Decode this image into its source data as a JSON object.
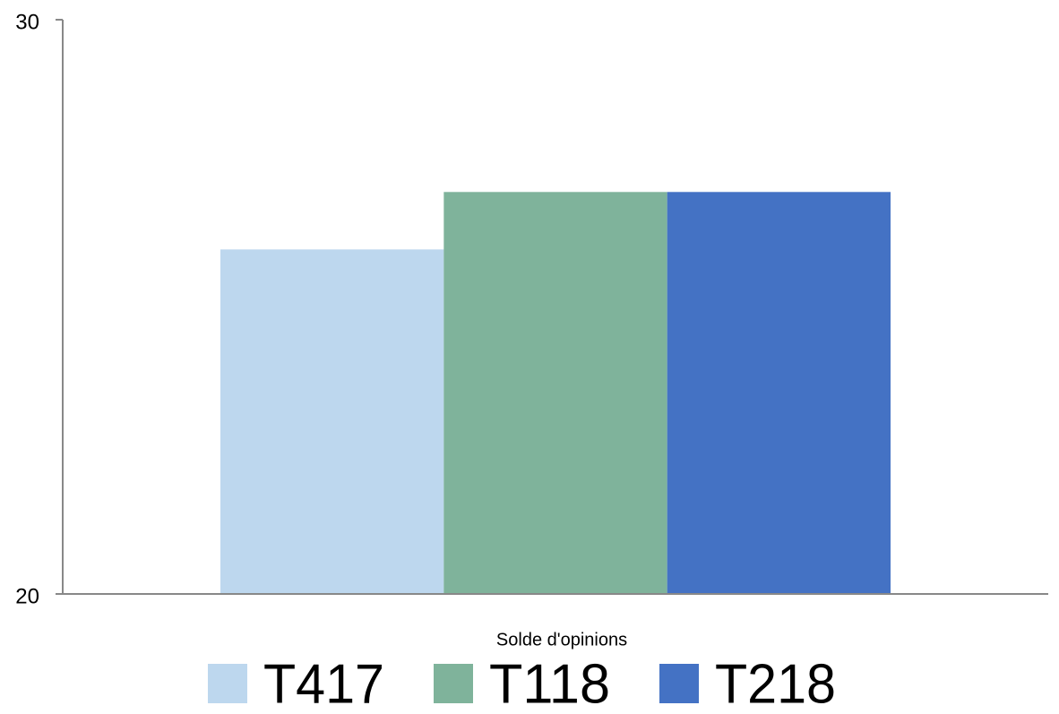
{
  "chart_data": {
    "type": "bar",
    "categories": [
      "Solde d'opinions"
    ],
    "series": [
      {
        "name": "T417",
        "color": "#bdd7ee",
        "values": [
          26
        ]
      },
      {
        "name": "T118",
        "color": "#7fb39b",
        "values": [
          27
        ]
      },
      {
        "name": "T218",
        "color": "#4472c4",
        "values": [
          27
        ]
      }
    ],
    "ylim": [
      20,
      30
    ],
    "yticks": [
      20,
      30
    ],
    "legend": "bottom"
  }
}
